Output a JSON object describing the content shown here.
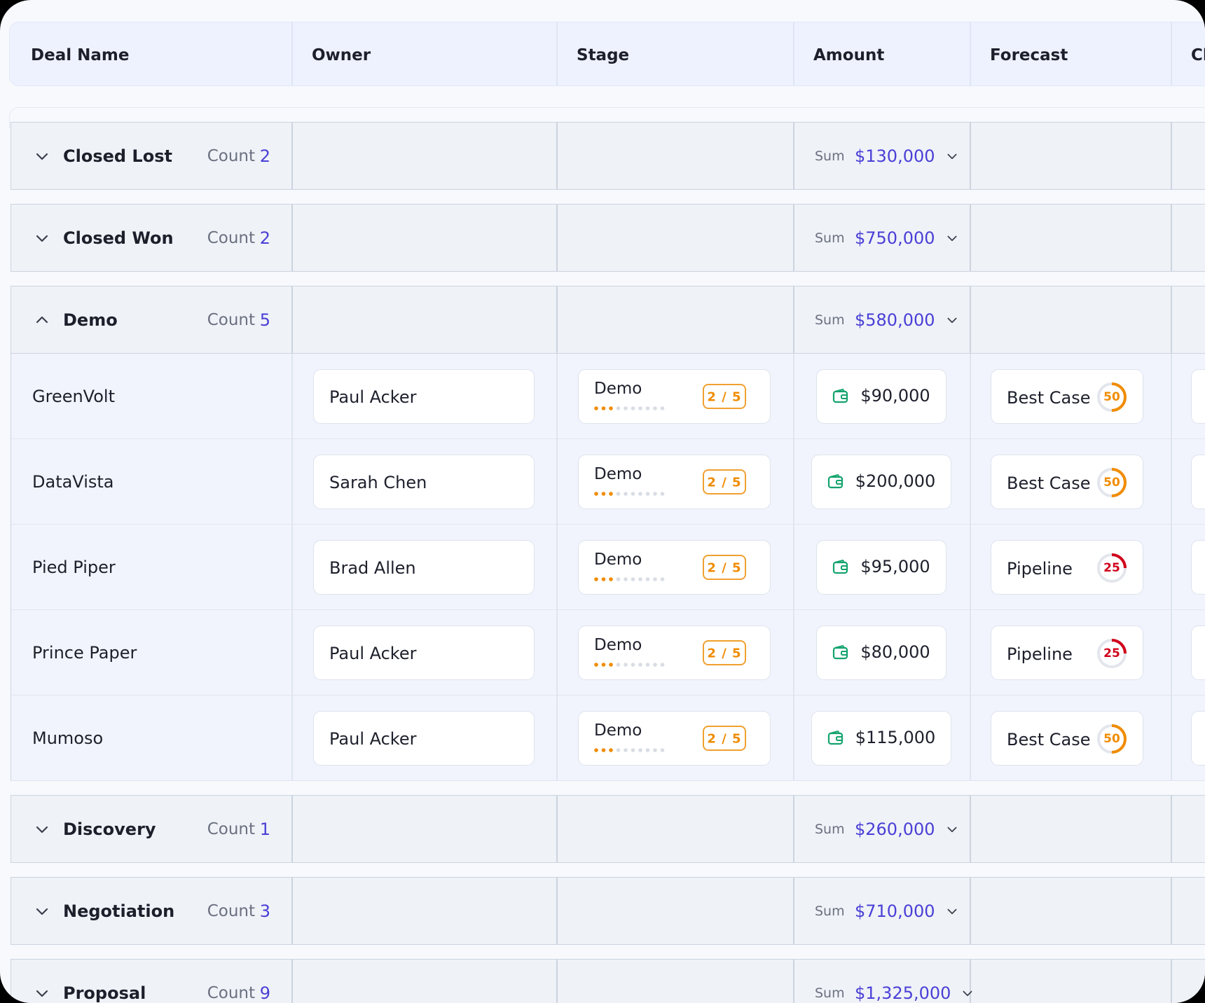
{
  "header": {
    "columns": [
      "Deal Name",
      "Owner",
      "Stage",
      "Amount",
      "Forecast",
      "Cl"
    ]
  },
  "labels": {
    "count": "Count",
    "sum": "Sum"
  },
  "groups": [
    {
      "title": "Closed Lost",
      "count": 2,
      "sum": "$130,000",
      "expanded": false
    },
    {
      "title": "Closed Won",
      "count": 2,
      "sum": "$750,000",
      "expanded": false
    },
    {
      "title": "Demo",
      "count": 5,
      "sum": "$580,000",
      "expanded": true,
      "rows": [
        {
          "name": "GreenVolt",
          "owner": "Paul Acker",
          "stage": "Demo",
          "step": "2 / 5",
          "amount": "$90,000",
          "forecast": "Best Case",
          "probability": 50,
          "color": "#f08c00"
        },
        {
          "name": "DataVista",
          "owner": "Sarah Chen",
          "stage": "Demo",
          "step": "2 / 5",
          "amount": "$200,000",
          "forecast": "Best Case",
          "probability": 50,
          "color": "#f08c00"
        },
        {
          "name": "Pied Piper",
          "owner": "Brad Allen",
          "stage": "Demo",
          "step": "2 / 5",
          "amount": "$95,000",
          "forecast": "Pipeline",
          "probability": 25,
          "color": "#d0021b"
        },
        {
          "name": "Prince Paper",
          "owner": "Paul Acker",
          "stage": "Demo",
          "step": "2 / 5",
          "amount": "$80,000",
          "forecast": "Pipeline",
          "probability": 25,
          "color": "#d0021b"
        },
        {
          "name": "Mumoso",
          "owner": "Paul Acker",
          "stage": "Demo",
          "step": "2 / 5",
          "amount": "$115,000",
          "forecast": "Best Case",
          "probability": 50,
          "color": "#f08c00"
        }
      ]
    },
    {
      "title": "Discovery",
      "count": 1,
      "sum": "$260,000",
      "expanded": false
    },
    {
      "title": "Negotiation",
      "count": 3,
      "sum": "$710,000",
      "expanded": false
    },
    {
      "title": "Proposal",
      "count": 9,
      "sum": "$1,325,000",
      "expanded": false
    }
  ]
}
